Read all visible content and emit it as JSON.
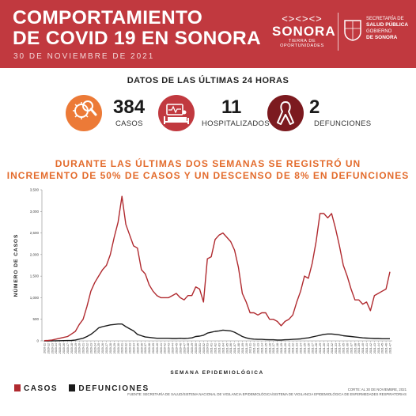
{
  "header": {
    "title_line1": "COMPORTAMIENTO",
    "title_line2": "DE COVID 19 EN SONORA",
    "date": "30 DE NOVIEMBRE DE 2021",
    "logo_name": "SONORA",
    "logo_tagline": "TIERRA DE OPORTUNIDADES",
    "gov_line1": "SECRETARÍA DE",
    "gov_line2": "SALUD PÚBLICA",
    "gov_line3": "GOBIERNO",
    "gov_line4": "DE SONORA"
  },
  "stats": {
    "heading": "DATOS DE LAS ÚLTIMAS 24 HORAS",
    "items": [
      {
        "value": "384",
        "label": "CASOS",
        "icon": "virus-magnifier-icon",
        "color": "#ec7a37"
      },
      {
        "value": "11",
        "label": "HOSPITALIZADOS",
        "icon": "hospital-bed-icon",
        "color": "#c1393f"
      },
      {
        "value": "2",
        "label": "DEFUNCIONES",
        "icon": "ribbon-icon",
        "color": "#7c1a1f"
      }
    ]
  },
  "headline": {
    "line1": "DURANTE LAS ÚLTIMAS DOS SEMANAS SE REGISTRÓ UN",
    "line2": "INCREMENTO DE 50% DE CASOS Y UN DESCENSO DE 8% EN DEFUNCIONES"
  },
  "colors": {
    "brand": "#c1393f",
    "accent": "#e36b2c",
    "casos": "#b02a2f",
    "defunciones": "#1a1a1a"
  },
  "chart_data": {
    "type": "line",
    "title": "",
    "xlabel": "SEMANA EPIDEMIOLÓGICA",
    "ylabel": "NÚMERO DE CASOS",
    "ylim": [
      0,
      3500
    ],
    "yticks": [
      0,
      500,
      1000,
      1500,
      2000,
      2500,
      3000,
      3500
    ],
    "ytick_labels": [
      "0",
      "500",
      "1,000",
      "1,500",
      "2,000",
      "2,500",
      "3,000",
      "3,500"
    ],
    "grid": false,
    "legend": "bottom-left",
    "x": [
      "2020-11",
      "2020-12",
      "2020-13",
      "2020-14",
      "2020-15",
      "2020-16",
      "2020-17",
      "2020-18",
      "2020-19",
      "2020-20",
      "2020-21",
      "2020-22",
      "2020-23",
      "2020-24",
      "2020-25",
      "2020-26",
      "2020-27",
      "2020-28",
      "2020-29",
      "2020-30",
      "2020-31",
      "2020-32",
      "2020-33",
      "2020-34",
      "2020-35",
      "2020-36",
      "2020-37",
      "2020-38",
      "2020-39",
      "2020-40",
      "2020-41",
      "2020-42",
      "2020-43",
      "2020-44",
      "2020-45",
      "2020-46",
      "2020-47",
      "2020-48",
      "2020-49",
      "2020-50",
      "2020-51",
      "2020-52",
      "2020-53",
      "2021-01",
      "2021-02",
      "2021-03",
      "2021-04",
      "2021-05",
      "2021-06",
      "2021-07",
      "2021-08",
      "2021-09",
      "2021-10",
      "2021-11",
      "2021-12",
      "2021-13",
      "2021-14",
      "2021-15",
      "2021-16",
      "2021-17",
      "2021-18",
      "2021-19",
      "2021-20",
      "2021-21",
      "2021-22",
      "2021-23",
      "2021-24",
      "2021-25",
      "2021-26",
      "2021-27",
      "2021-28",
      "2021-29",
      "2021-30",
      "2021-31",
      "2021-32",
      "2021-33",
      "2021-34",
      "2021-35",
      "2021-36",
      "2021-37",
      "2021-38",
      "2021-39",
      "2021-40",
      "2021-41",
      "2021-42",
      "2021-43",
      "2021-44",
      "2021-45",
      "2021-46",
      "2021-47"
    ],
    "series": [
      {
        "name": "CASOS",
        "color": "#b02a2f",
        "values": [
          5,
          10,
          20,
          40,
          60,
          80,
          100,
          160,
          220,
          380,
          500,
          800,
          1150,
          1350,
          1500,
          1650,
          1750,
          2000,
          2400,
          2750,
          3350,
          2700,
          2450,
          2200,
          2150,
          1650,
          1550,
          1300,
          1150,
          1050,
          1000,
          1000,
          1000,
          1050,
          1100,
          1000,
          950,
          1050,
          1050,
          1250,
          1200,
          900,
          1900,
          1950,
          2350,
          2450,
          2500,
          2400,
          2300,
          2100,
          1700,
          1100,
          900,
          650,
          650,
          600,
          650,
          650,
          500,
          500,
          450,
          350,
          450,
          500,
          600,
          900,
          1150,
          1500,
          1450,
          1800,
          2300,
          2950,
          2950,
          2850,
          2950,
          2600,
          2200,
          1750,
          1500,
          1200,
          950,
          950,
          850,
          900,
          700,
          1050,
          1100,
          1150,
          1200,
          1600
        ]
      },
      {
        "name": "DEFUNCIONES",
        "color": "#1a1a1a",
        "values": [
          0,
          0,
          1,
          2,
          3,
          5,
          8,
          10,
          20,
          40,
          60,
          100,
          150,
          220,
          300,
          330,
          350,
          370,
          380,
          390,
          390,
          330,
          280,
          230,
          150,
          120,
          90,
          80,
          70,
          60,
          60,
          60,
          60,
          55,
          55,
          60,
          55,
          60,
          70,
          100,
          110,
          130,
          180,
          200,
          220,
          230,
          250,
          240,
          230,
          200,
          150,
          100,
          70,
          50,
          40,
          35,
          35,
          30,
          25,
          25,
          20,
          20,
          25,
          30,
          35,
          40,
          45,
          60,
          70,
          90,
          110,
          130,
          150,
          160,
          160,
          150,
          140,
          120,
          110,
          100,
          90,
          80,
          70,
          65,
          60,
          55,
          55,
          50,
          50,
          50
        ]
      }
    ]
  },
  "legend": {
    "casos": "CASOS",
    "defunciones": "DEFUNCIONES"
  },
  "source": {
    "line1": "CORTE: AL 30 DE NOVIEMBRE, 2021",
    "line2": "FUENTE: SECRETARÍA DE SALUD/SISTEMA NACIONAL DE VIGILANCIA EPIDEMIOLÓGICA/SISTEMA DE VIGILANCIA EPIDEMIOLÓGICA DE ENFERMEDADES RESPIRATORIAS"
  }
}
